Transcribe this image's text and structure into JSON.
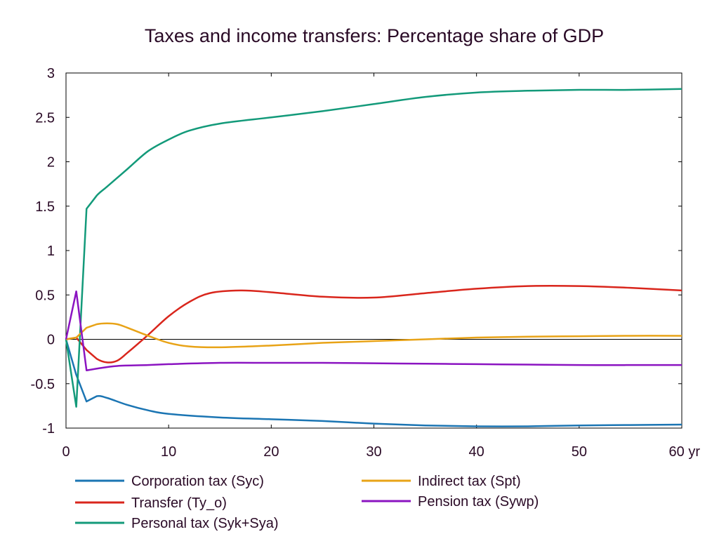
{
  "chart_data": {
    "type": "line",
    "title": "Taxes and income transfers: Percentage share of GDP",
    "xlabel": "",
    "ylabel": "",
    "xlim": [
      0,
      60
    ],
    "ylim": [
      -1,
      3
    ],
    "x_ticks": [
      0,
      10,
      20,
      30,
      40,
      50,
      60
    ],
    "x_tick_labels": [
      "0",
      "10",
      "20",
      "30",
      "40",
      "50",
      "60 yr"
    ],
    "y_ticks": [
      -1,
      -0.5,
      0,
      0.5,
      1,
      1.5,
      2,
      2.5,
      3
    ],
    "y_tick_labels": [
      "-1",
      "-0.5",
      "0",
      "0.5",
      "1",
      "1.5",
      "2",
      "2.5",
      "3"
    ],
    "grid": false,
    "legend_position": "bottom",
    "series": [
      {
        "name": "Corporation tax (Syc)",
        "color": "#1b75b3",
        "points": [
          [
            0,
            0
          ],
          [
            1,
            -0.4
          ],
          [
            2,
            -0.7
          ],
          [
            3,
            -0.64
          ],
          [
            4,
            -0.66
          ],
          [
            6,
            -0.74
          ],
          [
            8,
            -0.8
          ],
          [
            10,
            -0.84
          ],
          [
            15,
            -0.88
          ],
          [
            20,
            -0.9
          ],
          [
            25,
            -0.92
          ],
          [
            30,
            -0.95
          ],
          [
            35,
            -0.97
          ],
          [
            40,
            -0.98
          ],
          [
            45,
            -0.98
          ],
          [
            50,
            -0.97
          ],
          [
            55,
            -0.965
          ],
          [
            60,
            -0.96
          ]
        ]
      },
      {
        "name": "Transfer (Ty_o)",
        "color": "#d9261c",
        "points": [
          [
            0,
            0
          ],
          [
            1,
            0.02
          ],
          [
            2,
            -0.12
          ],
          [
            3,
            -0.22
          ],
          [
            4,
            -0.26
          ],
          [
            5,
            -0.24
          ],
          [
            6,
            -0.15
          ],
          [
            8,
            0.05
          ],
          [
            10,
            0.26
          ],
          [
            12,
            0.42
          ],
          [
            14,
            0.52
          ],
          [
            17,
            0.55
          ],
          [
            20,
            0.53
          ],
          [
            25,
            0.48
          ],
          [
            30,
            0.47
          ],
          [
            35,
            0.52
          ],
          [
            40,
            0.57
          ],
          [
            45,
            0.6
          ],
          [
            50,
            0.6
          ],
          [
            55,
            0.58
          ],
          [
            60,
            0.55
          ]
        ]
      },
      {
        "name": "Personal tax (Syk+Sya)",
        "color": "#139a7a",
        "points": [
          [
            0,
            0
          ],
          [
            1,
            -0.76
          ],
          [
            2,
            1.47
          ],
          [
            3,
            1.62
          ],
          [
            4,
            1.72
          ],
          [
            6,
            1.92
          ],
          [
            8,
            2.12
          ],
          [
            10,
            2.25
          ],
          [
            12,
            2.35
          ],
          [
            15,
            2.43
          ],
          [
            20,
            2.5
          ],
          [
            25,
            2.57
          ],
          [
            30,
            2.65
          ],
          [
            35,
            2.73
          ],
          [
            40,
            2.78
          ],
          [
            45,
            2.8
          ],
          [
            50,
            2.81
          ],
          [
            55,
            2.81
          ],
          [
            60,
            2.82
          ]
        ]
      },
      {
        "name": "Indirect tax (Spt)",
        "color": "#e8a317",
        "points": [
          [
            0,
            0
          ],
          [
            1,
            0.02
          ],
          [
            2,
            0.13
          ],
          [
            3,
            0.17
          ],
          [
            4,
            0.18
          ],
          [
            5,
            0.17
          ],
          [
            6,
            0.13
          ],
          [
            8,
            0.04
          ],
          [
            10,
            -0.04
          ],
          [
            12,
            -0.08
          ],
          [
            15,
            -0.09
          ],
          [
            20,
            -0.07
          ],
          [
            25,
            -0.04
          ],
          [
            30,
            -0.02
          ],
          [
            35,
            0
          ],
          [
            40,
            0.02
          ],
          [
            45,
            0.03
          ],
          [
            50,
            0.035
          ],
          [
            55,
            0.04
          ],
          [
            60,
            0.04
          ]
        ]
      },
      {
        "name": "Pension tax (Sywp)",
        "color": "#8b14c1",
        "points": [
          [
            0,
            0
          ],
          [
            1,
            0.54
          ],
          [
            2,
            -0.35
          ],
          [
            3,
            -0.33
          ],
          [
            5,
            -0.3
          ],
          [
            8,
            -0.29
          ],
          [
            10,
            -0.28
          ],
          [
            15,
            -0.265
          ],
          [
            20,
            -0.265
          ],
          [
            25,
            -0.265
          ],
          [
            30,
            -0.27
          ],
          [
            35,
            -0.275
          ],
          [
            40,
            -0.28
          ],
          [
            45,
            -0.285
          ],
          [
            50,
            -0.29
          ],
          [
            55,
            -0.29
          ],
          [
            60,
            -0.29
          ]
        ]
      }
    ]
  }
}
